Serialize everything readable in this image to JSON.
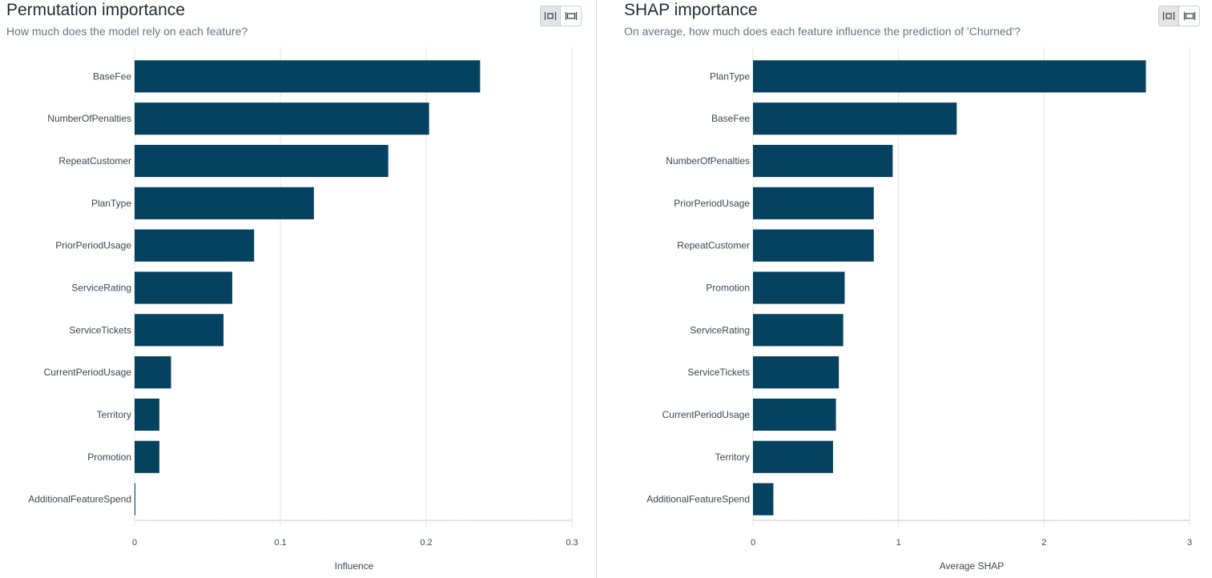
{
  "colors": {
    "bar": "#05425f",
    "grid": "#e1e4e7",
    "axis": "#8a9299"
  },
  "icons": {
    "toggle_fit": "fit-width-icon",
    "toggle_full": "expand-width-icon"
  },
  "left": {
    "title": "Permutation importance",
    "subtitle": "How much does the model rely on each feature?"
  },
  "right": {
    "title": "SHAP importance",
    "subtitle": "On average, how much does each feature influence the prediction of 'Churned'?"
  },
  "chart_data": [
    {
      "type": "bar",
      "orientation": "horizontal",
      "categories": [
        "BaseFee",
        "NumberOfPenalties",
        "RepeatCustomer",
        "PlanType",
        "PriorPeriodUsage",
        "ServiceRating",
        "ServiceTickets",
        "CurrentPeriodUsage",
        "Territory",
        "Promotion",
        "AdditionalFeatureSpend"
      ],
      "values": [
        0.237,
        0.202,
        0.174,
        0.123,
        0.082,
        0.067,
        0.061,
        0.025,
        0.017,
        0.017,
        0.0005
      ],
      "xlabel": "Influence",
      "xlim": [
        0,
        0.3
      ],
      "xticks": [
        0,
        0.1,
        0.2,
        0.3
      ],
      "xtick_labels": [
        "0",
        "0.1",
        "0.2",
        "0.3"
      ],
      "grid": true
    },
    {
      "type": "bar",
      "orientation": "horizontal",
      "categories": [
        "PlanType",
        "BaseFee",
        "NumberOfPenalties",
        "PriorPeriodUsage",
        "RepeatCustomer",
        "Promotion",
        "ServiceRating",
        "ServiceTickets",
        "CurrentPeriodUsage",
        "Territory",
        "AdditionalFeatureSpend"
      ],
      "values": [
        2.7,
        1.4,
        0.96,
        0.83,
        0.83,
        0.63,
        0.62,
        0.59,
        0.57,
        0.55,
        0.14
      ],
      "xlabel": "Average SHAP",
      "xlim": [
        0,
        3
      ],
      "xticks": [
        0,
        1,
        2,
        3
      ],
      "xtick_labels": [
        "0",
        "1",
        "2",
        "3"
      ],
      "grid": true
    }
  ]
}
